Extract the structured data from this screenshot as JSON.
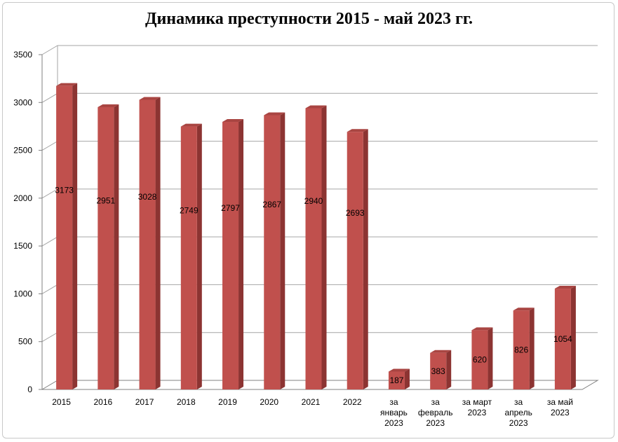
{
  "chart_data": {
    "type": "bar",
    "title": "Динамика преступности 2015 - май 2023 гг.",
    "categories": [
      [
        "2015"
      ],
      [
        "2016"
      ],
      [
        "2017"
      ],
      [
        "2018"
      ],
      [
        "2019"
      ],
      [
        "2020"
      ],
      [
        "2021"
      ],
      [
        "2022"
      ],
      [
        "за",
        "январь",
        "2023"
      ],
      [
        "за",
        "февраль",
        "2023"
      ],
      [
        "за март",
        "2023"
      ],
      [
        "за",
        "апрель",
        "2023"
      ],
      [
        "за май",
        "2023"
      ]
    ],
    "values": [
      3173,
      2951,
      3028,
      2749,
      2797,
      2867,
      2940,
      2693,
      187,
      383,
      620,
      826,
      1054
    ],
    "yticks": [
      0,
      500,
      1000,
      1500,
      2000,
      2500,
      3000,
      3500
    ],
    "ylim": [
      0,
      3500
    ],
    "grid": true,
    "data_labels": true,
    "colors": {
      "bar_front": "#c0504d",
      "bar_side": "#8c3432",
      "bar_top": "#a94542",
      "grid": "#a6a6a6"
    }
  }
}
